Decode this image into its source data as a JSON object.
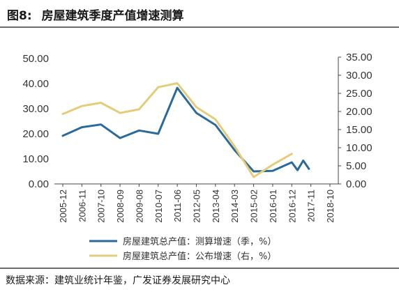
{
  "figure": {
    "label": "图8:",
    "title": "房屋建筑季度产值增速测算"
  },
  "source": "数据来源：建筑业统计年鉴，广发证券发展研究中心",
  "colors": {
    "series1": "#2b6a9a",
    "series2": "#e3cd7a",
    "rule": "#6c6c6c"
  },
  "chart_data": {
    "type": "line",
    "x_labels": [
      "2005-12",
      "2006-11",
      "2007-10",
      "2008-09",
      "2009-08",
      "2010-07",
      "2011-06",
      "2012-05",
      "2013-04",
      "2014-03",
      "2015-02",
      "2016-01",
      "2016-12",
      "2017-11",
      "2018-10"
    ],
    "left_axis": {
      "ylim": [
        0,
        50
      ],
      "ticks": [
        "0.00",
        "10.00",
        "20.00",
        "30.00",
        "40.00",
        "50.00"
      ]
    },
    "right_axis": {
      "ylim": [
        0,
        35
      ],
      "ticks": [
        "0.00",
        "5.00",
        "10.00",
        "15.00",
        "20.00",
        "25.00",
        "30.00",
        "35.00"
      ]
    },
    "grid": false,
    "legend_position": "bottom",
    "series": [
      {
        "name": "房屋建筑总产值：测算增速（季，%）",
        "axis": "left",
        "color": "#2b6a9a",
        "points": [
          [
            0,
            19.2
          ],
          [
            1,
            22.6
          ],
          [
            2,
            23.7
          ],
          [
            3,
            18.3
          ],
          [
            4,
            21.3
          ],
          [
            5,
            20.0
          ],
          [
            6,
            38.3
          ],
          [
            7,
            28.3
          ],
          [
            8,
            23.5
          ],
          [
            9,
            13.5
          ],
          [
            10,
            5.0
          ],
          [
            11,
            5.2
          ],
          [
            12,
            8.6
          ],
          [
            12.3,
            5.5
          ],
          [
            12.6,
            9.3
          ],
          [
            12.9,
            6.0
          ]
        ]
      },
      {
        "name": "房屋建筑总产值：公布增速（右，%）",
        "axis": "right",
        "color": "#e3cd7a",
        "points": [
          [
            0,
            19.3
          ],
          [
            1,
            21.5
          ],
          [
            2,
            22.4
          ],
          [
            3,
            19.6
          ],
          [
            4,
            20.6
          ],
          [
            5,
            26.7
          ],
          [
            6,
            27.8
          ],
          [
            7,
            21.2
          ],
          [
            8,
            17.8
          ],
          [
            9,
            10.4
          ],
          [
            10,
            1.9
          ],
          [
            11,
            5.3
          ],
          [
            12,
            8.3
          ]
        ]
      }
    ]
  }
}
